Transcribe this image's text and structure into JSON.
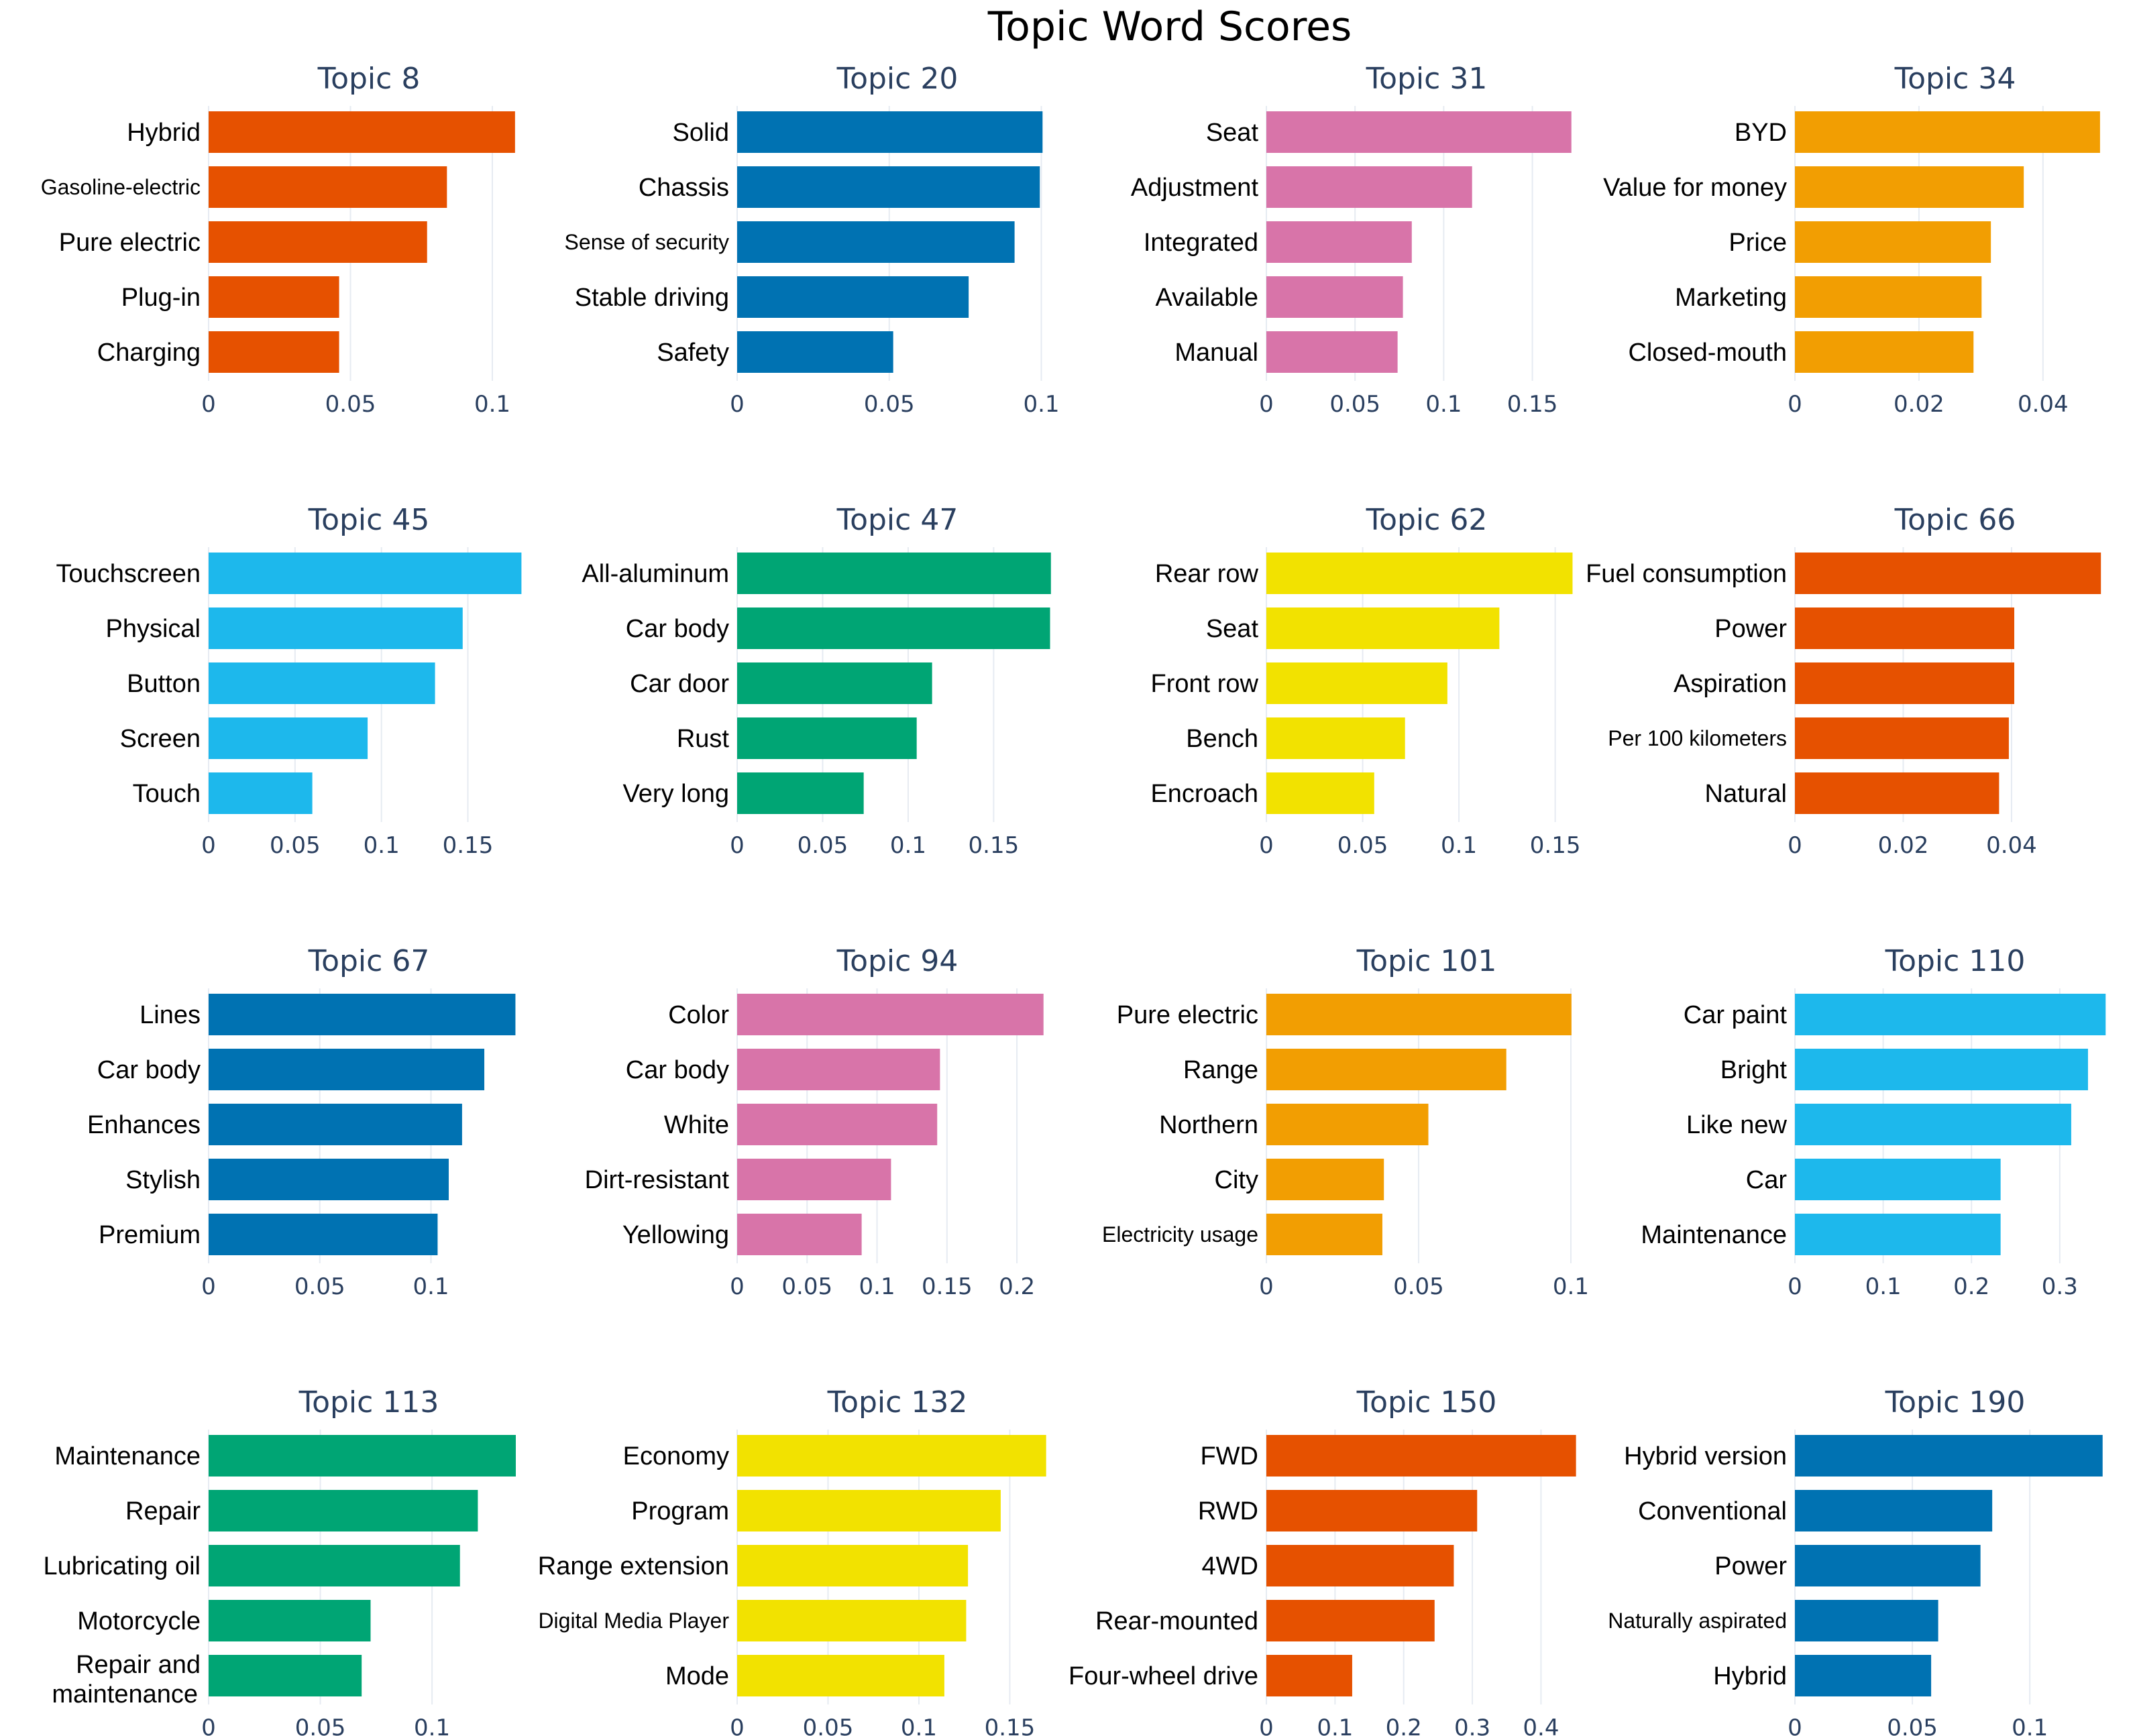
{
  "chart_data": {
    "type": "bar",
    "orientation": "horizontal",
    "title": "Topic Word Scores",
    "grid": true,
    "panels": [
      {
        "title": "Topic 8",
        "color": "#E65100",
        "xticks": [
          0,
          0.05,
          0.1
        ],
        "xtick_labels": [
          "0",
          "0.05",
          "0.1"
        ],
        "xlim": [
          0,
          0.113
        ],
        "labels": [
          "Hybrid",
          "Gasoline-electric",
          "Pure electric",
          "Plug-in",
          "Charging"
        ],
        "values": [
          0.108,
          0.084,
          0.077,
          0.046,
          0.046
        ]
      },
      {
        "title": "Topic 20",
        "color": "#0072B2",
        "xticks": [
          0,
          0.05,
          0.1
        ],
        "xtick_labels": [
          "0",
          "0.05",
          "0.1"
        ],
        "xlim": [
          0,
          0.1054
        ],
        "labels": [
          "Solid",
          "Chassis",
          "Sense of security",
          "Stable driving",
          "Safety"
        ],
        "values": [
          0.1004,
          0.0995,
          0.0912,
          0.0761,
          0.0513
        ]
      },
      {
        "title": "Topic 31",
        "color": "#D874A9",
        "xticks": [
          0,
          0.05,
          0.1,
          0.15
        ],
        "xtick_labels": [
          "0",
          "0.05",
          "0.1",
          "0.15"
        ],
        "xlim": [
          0,
          0.1808
        ],
        "labels": [
          "Seat",
          "Adjustment",
          "Integrated",
          "Available",
          "Manual"
        ],
        "values": [
          0.172,
          0.116,
          0.082,
          0.077,
          0.074
        ]
      },
      {
        "title": "Topic 34",
        "color": "#F29E02",
        "xticks": [
          0,
          0.02,
          0.04
        ],
        "xtick_labels": [
          "0",
          "0.02",
          "0.04"
        ],
        "xlim": [
          0,
          0.0517
        ],
        "labels": [
          "BYD",
          "Value for money",
          "Price",
          "Marketing",
          "Closed-mouth"
        ],
        "values": [
          0.0492,
          0.0369,
          0.0316,
          0.0301,
          0.0288
        ]
      },
      {
        "title": "Topic 45",
        "color": "#1DB8EC",
        "xticks": [
          0,
          0.05,
          0.1,
          0.15
        ],
        "xtick_labels": [
          "0",
          "0.05",
          "0.1",
          "0.15"
        ],
        "xlim": [
          0,
          0.1855
        ],
        "labels": [
          "Touchscreen",
          "Physical",
          "Button",
          "Screen",
          "Touch"
        ],
        "values": [
          0.181,
          0.147,
          0.131,
          0.092,
          0.06
        ]
      },
      {
        "title": "Topic 47",
        "color": "#00A574",
        "xticks": [
          0,
          0.05,
          0.1,
          0.15
        ],
        "xtick_labels": [
          "0",
          "0.05",
          "0.1",
          "0.15"
        ],
        "xlim": [
          0,
          0.1875
        ],
        "labels": [
          "All-aluminum",
          "Car body",
          "Car door",
          "Rust",
          "Very long"
        ],
        "values": [
          0.1835,
          0.183,
          0.114,
          0.105,
          0.074
        ]
      },
      {
        "title": "Topic 62",
        "color": "#F2E200",
        "xticks": [
          0,
          0.05,
          0.1,
          0.15
        ],
        "xtick_labels": [
          "0",
          "0.05",
          "0.1",
          "0.15"
        ],
        "xlim": [
          0,
          0.1665
        ],
        "labels": [
          "Rear row",
          "Seat",
          "Front row",
          "Bench",
          "Encroach"
        ],
        "values": [
          0.159,
          0.121,
          0.094,
          0.072,
          0.056
        ]
      },
      {
        "title": "Topic 66",
        "color": "#E65100",
        "xticks": [
          0,
          0.02,
          0.04
        ],
        "xtick_labels": [
          "0",
          "0.02",
          "0.04"
        ],
        "xlim": [
          0,
          0.0592
        ],
        "labels": [
          "Fuel consumption",
          "Power",
          "Aspiration",
          "Per 100 kilometers",
          "Natural"
        ],
        "values": [
          0.0565,
          0.0405,
          0.0405,
          0.0395,
          0.0377
        ]
      },
      {
        "title": "Topic 67",
        "color": "#0072B2",
        "xticks": [
          0,
          0.05,
          0.1
        ],
        "xtick_labels": [
          "0",
          "0.05",
          "0.1"
        ],
        "xlim": [
          0,
          0.1442
        ],
        "labels": [
          "Lines",
          "Car body",
          "Enhances",
          "Stylish",
          "Premium"
        ],
        "values": [
          0.138,
          0.124,
          0.114,
          0.108,
          0.103
        ]
      },
      {
        "title": "Topic 94",
        "color": "#D874A9",
        "xticks": [
          0,
          0.05,
          0.1,
          0.15,
          0.2
        ],
        "xtick_labels": [
          "0",
          "0.05",
          "0.1",
          "0.15",
          "0.2"
        ],
        "xlim": [
          0,
          0.2292
        ],
        "labels": [
          "Color",
          "Car body",
          "White",
          "Dirt-resistant",
          "Yellowing"
        ],
        "values": [
          0.219,
          0.145,
          0.143,
          0.11,
          0.089
        ]
      },
      {
        "title": "Topic 101",
        "color": "#F29E02",
        "xticks": [
          0,
          0.05,
          0.1
        ],
        "xtick_labels": [
          "0",
          "0.05",
          "0.1"
        ],
        "xlim": [
          0,
          0.1053
        ],
        "labels": [
          "Pure electric",
          "Range",
          "Northern",
          "City",
          "Electricity usage"
        ],
        "values": [
          0.1002,
          0.0788,
          0.0532,
          0.0386,
          0.0381
        ]
      },
      {
        "title": "Topic 110",
        "color": "#1DB8EC",
        "xticks": [
          0,
          0.1,
          0.2,
          0.3
        ],
        "xtick_labels": [
          "0",
          "0.1",
          "0.2",
          "0.3"
        ],
        "xlim": [
          0,
          0.3632
        ],
        "labels": [
          "Car paint",
          "Bright",
          "Like new",
          "Car",
          "Maintenance"
        ],
        "values": [
          0.352,
          0.332,
          0.313,
          0.233,
          0.233
        ]
      },
      {
        "title": "Topic 113",
        "color": "#00A574",
        "xticks": [
          0,
          0.05,
          0.1
        ],
        "xtick_labels": [
          "0",
          "0.05",
          "0.1"
        ],
        "xlim": [
          0,
          0.1435
        ],
        "labels": [
          "Maintenance",
          "Repair",
          "Lubricating oil",
          "Motorcycle",
          "Repair and maintenance"
        ],
        "values": [
          0.1375,
          0.1205,
          0.1125,
          0.0725,
          0.0685
        ]
      },
      {
        "title": "Topic 132",
        "color": "#F2E200",
        "xticks": [
          0,
          0.05,
          0.1,
          0.15
        ],
        "xtick_labels": [
          "0",
          "0.05",
          "0.1",
          "0.15"
        ],
        "xlim": [
          0,
          0.1764
        ],
        "labels": [
          "Economy",
          "Program",
          "Range extension",
          "Digital Media Player",
          "Mode"
        ],
        "values": [
          0.17,
          0.145,
          0.127,
          0.126,
          0.114
        ]
      },
      {
        "title": "Topic 150",
        "color": "#E65100",
        "xticks": [
          0,
          0.1,
          0.2,
          0.3,
          0.4
        ],
        "xtick_labels": [
          "0",
          "0.1",
          "0.2",
          "0.3",
          "0.4"
        ],
        "xlim": [
          0,
          0.467
        ],
        "labels": [
          "FWD",
          "RWD",
          "4WD",
          "Rear-mounted",
          "Four-wheel drive"
        ],
        "values": [
          0.451,
          0.307,
          0.273,
          0.245,
          0.125
        ]
      },
      {
        "title": "Topic 190",
        "color": "#0072B2",
        "xticks": [
          0,
          0.05,
          0.1
        ],
        "xtick_labels": [
          "0",
          "0.05",
          "0.1"
        ],
        "xlim": [
          0,
          0.1365
        ],
        "labels": [
          "Hybrid version",
          "Conventional",
          "Power",
          "Naturally aspirated",
          "Hybrid"
        ],
        "values": [
          0.131,
          0.084,
          0.079,
          0.061,
          0.058
        ]
      }
    ]
  }
}
